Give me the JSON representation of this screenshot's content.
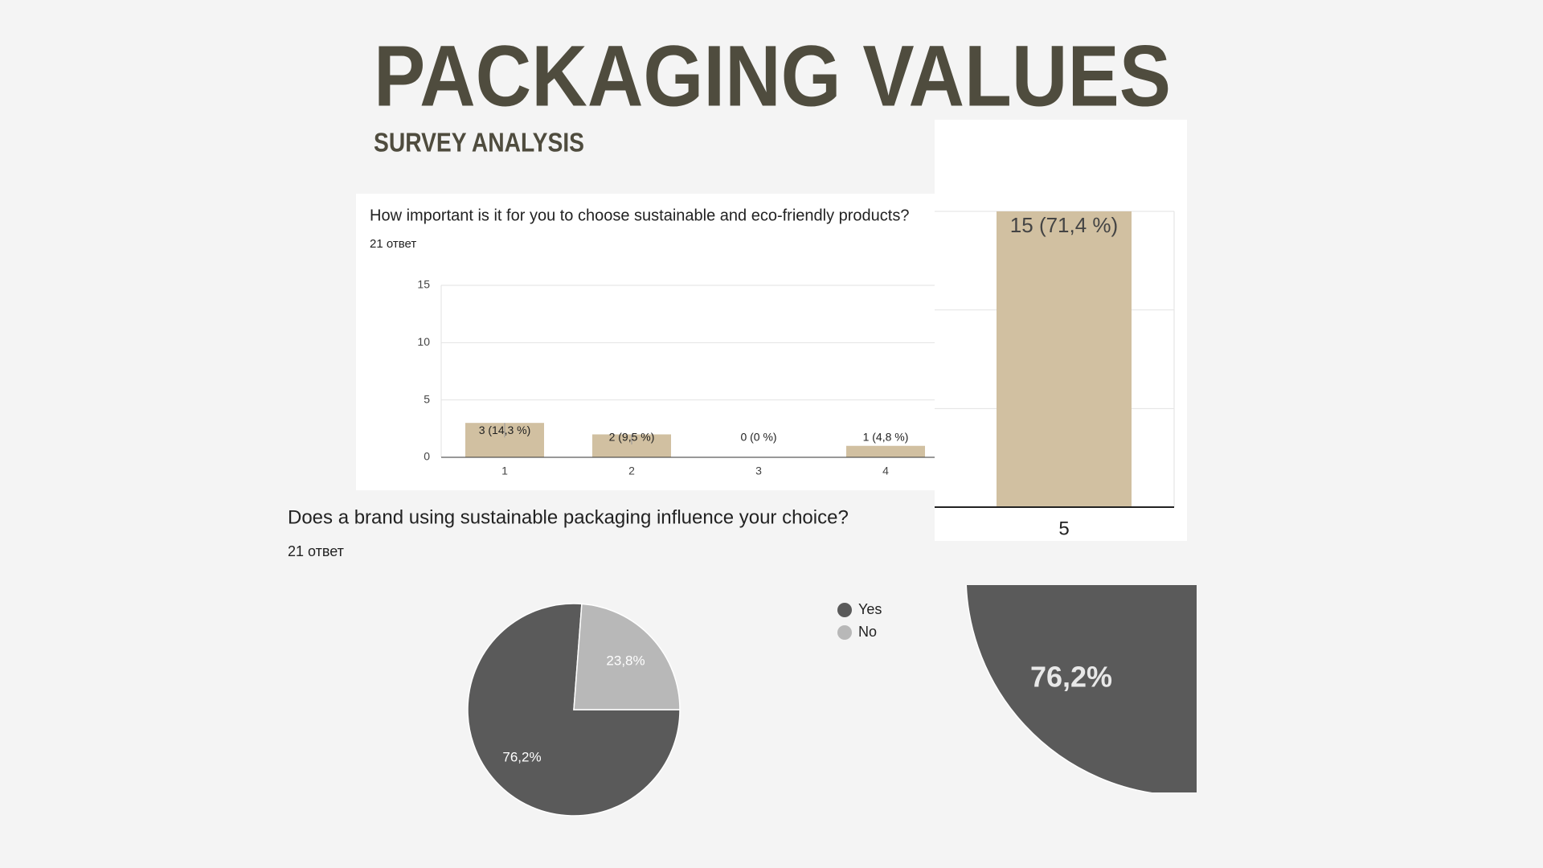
{
  "header": {
    "title": "PACKAGING VALUES",
    "subtitle": "SURVEY ANALYSIS"
  },
  "chart_data": [
    {
      "type": "bar",
      "title": "How important is it for you to choose sustainable and eco-friendly products?",
      "subtitle": "21 ответ",
      "categories": [
        "1",
        "2",
        "3",
        "4",
        "5"
      ],
      "values": [
        3,
        2,
        0,
        1,
        15
      ],
      "value_labels": [
        "3 (14,3 %)",
        "2 (9,5 %)",
        "0 (0 %)",
        "1 (4,8 %)",
        "15 (71,4 %)"
      ],
      "color": "#d1c0a1",
      "ylim": [
        0,
        15
      ],
      "yticks": [
        0,
        5,
        10,
        15
      ],
      "grid": true
    },
    {
      "type": "pie",
      "title": "Does a brand using sustainable packaging influence your choice?",
      "subtitle": "21 ответ",
      "categories": [
        "Yes",
        "No"
      ],
      "values": [
        76.2,
        23.8
      ],
      "value_labels": [
        "76,2%",
        "23,8%"
      ],
      "colors": [
        "#5a5a5a",
        "#b8b8b8"
      ],
      "legend": "right"
    }
  ]
}
